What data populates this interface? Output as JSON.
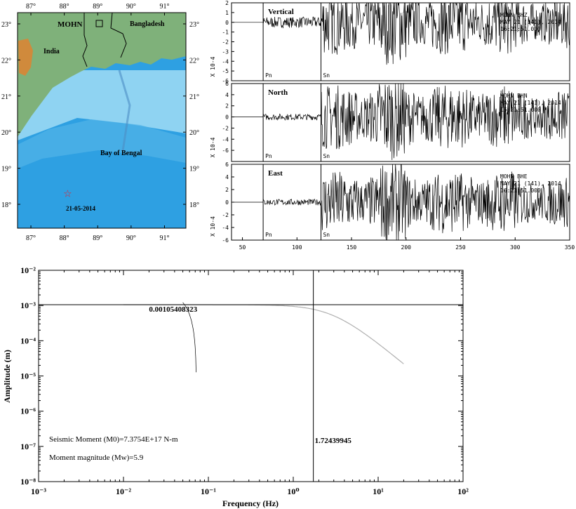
{
  "map": {
    "station": "MOHN",
    "country_labels": [
      "India",
      "Bangladesh"
    ],
    "sea_label": "Bay of Bengal",
    "event_date": "21-05-2014",
    "lon_ticks": [
      "87°",
      "88°",
      "89°",
      "90°",
      "91°"
    ],
    "lat_ticks": [
      "23°",
      "22°",
      "21°",
      "20°",
      "19°",
      "18°"
    ],
    "epicenter_lon": 88.1,
    "epicenter_lat": 18.3,
    "land_color": "#7fb17a",
    "sea_color": "#5cb7ea",
    "star_color": "#e8202a"
  },
  "chart_data": [
    {
      "type": "line",
      "panels": [
        {
          "component": "Vertical",
          "station": "MOHN",
          "channel": "BHZ",
          "date": "MAY 21 (141), 2014",
          "time": "16:21:51.000",
          "ylim": [
            -6,
            2
          ],
          "yticks": [
            2,
            1,
            0,
            -1,
            -2,
            -3,
            -4,
            -5,
            -6
          ]
        },
        {
          "component": "North",
          "station": "MOHN",
          "channel": "BHN",
          "date": "MAY 21 (141), 2014",
          "time": "16:21:51.000",
          "ylim": [
            -8,
            6
          ],
          "yticks": [
            6,
            4,
            2,
            0,
            -2,
            -4,
            -6
          ]
        },
        {
          "component": "East",
          "station": "MOHN",
          "channel": "BHE",
          "date": "MAY 21 (141), 2014",
          "time": "16:21:51.000",
          "ylim": [
            -6,
            6
          ],
          "yticks": [
            6,
            4,
            2,
            0,
            -2,
            -4,
            -6
          ]
        }
      ],
      "yunit_label": "X 10-4",
      "xlim": [
        40,
        350
      ],
      "xticks": [
        50,
        100,
        150,
        200,
        250,
        300,
        350
      ],
      "phase_picks": [
        {
          "name": "Pn",
          "x": 69
        },
        {
          "name": "Sn",
          "x": 122
        }
      ]
    },
    {
      "type": "line",
      "xlabel": "Frequency (Hz)",
      "ylabel": "Amplitude (m)",
      "xscale": "log",
      "yscale": "log",
      "xlim": [
        0.001,
        100
      ],
      "ylim": [
        1e-08,
        0.01
      ],
      "xtick_labels": [
        "10⁻³",
        "10⁻²",
        "10⁻¹",
        "10⁰",
        "10¹",
        "10²"
      ],
      "ytick_labels": [
        "10⁻²",
        "10⁻³",
        "10⁻⁴",
        "10⁻⁵",
        "10⁻⁶",
        "10⁻⁷",
        "10⁻⁸"
      ],
      "plateau_value": 0.00105408323,
      "plateau_label": "0.00105408323",
      "corner_frequency": 1.72439945,
      "corner_label": "1.72439945",
      "annotations": [
        "Seismic Moment (M0)=7.3754E+17 N-m",
        "Moment magnitude (Mw)=5.9"
      ]
    }
  ]
}
